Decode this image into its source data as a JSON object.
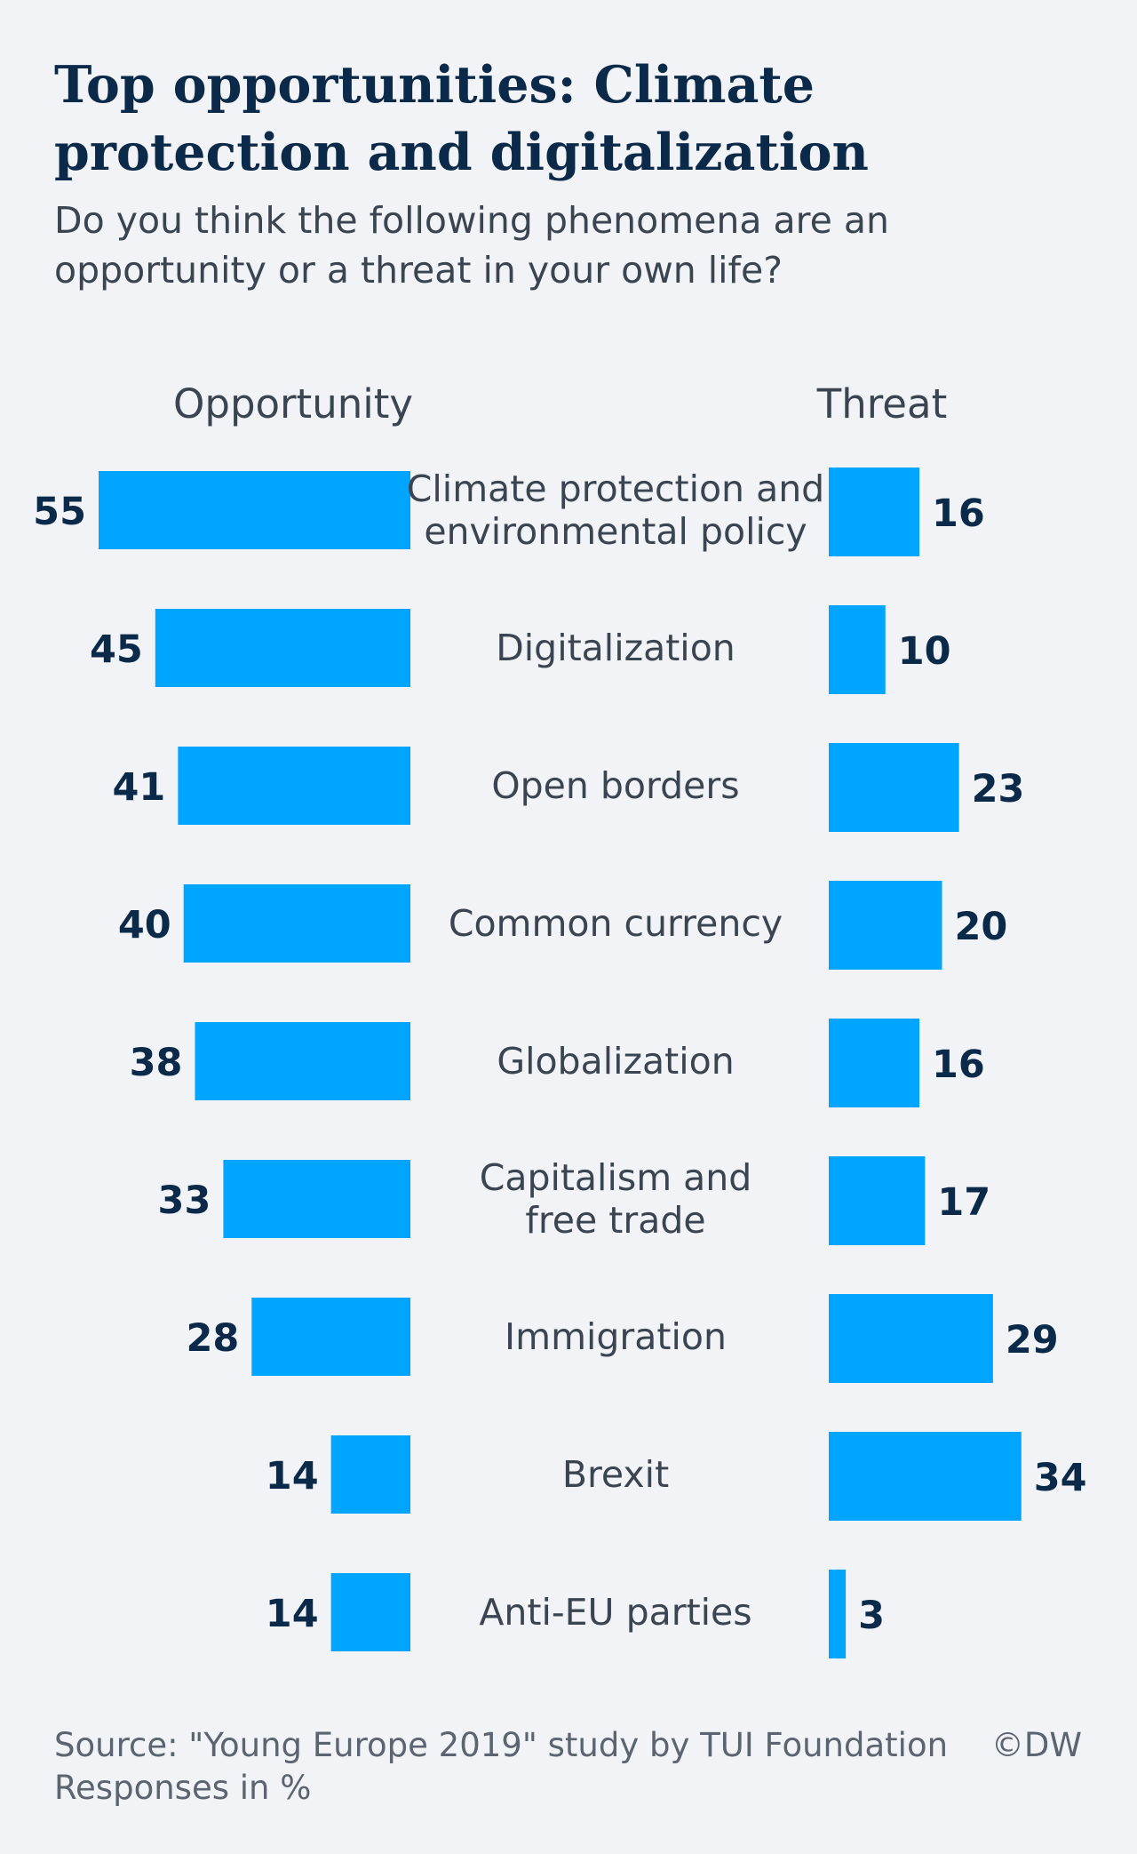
{
  "chart_data": {
    "type": "bar",
    "orientation": "horizontal-diverging",
    "title": "Top opportunities: Climate protection and digitalization",
    "subtitle": "Do you think the following phenomena are an opportunity or a threat in your own life?",
    "categories": [
      [
        "Climate protection and",
        "environmental policy"
      ],
      [
        "Digitalization"
      ],
      [
        "Open borders"
      ],
      [
        "Common currency"
      ],
      [
        "Globalization"
      ],
      [
        "Capitalism and",
        "free trade"
      ],
      [
        "Immigration"
      ],
      [
        "Brexit"
      ],
      [
        "Anti-EU parties"
      ]
    ],
    "series": [
      {
        "name": "Opportunity",
        "values": [
          55,
          45,
          41,
          40,
          38,
          33,
          28,
          14,
          14
        ]
      },
      {
        "name": "Threat",
        "values": [
          16,
          10,
          23,
          20,
          16,
          17,
          29,
          34,
          3
        ]
      }
    ],
    "unit": "%",
    "colors": {
      "bar": "#00a5ff",
      "value": "#0b2a4a"
    }
  },
  "footer": {
    "source": "Source: \"Young Europe 2019\" study by TUI Foundation",
    "note": "Responses in %",
    "copyright": "©DW"
  }
}
